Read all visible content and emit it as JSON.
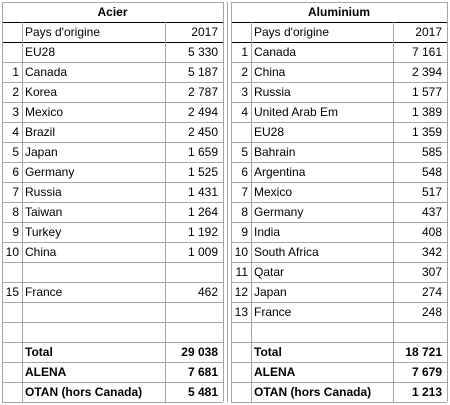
{
  "left": {
    "title": "Acier",
    "col_country": "Pays d'origine",
    "col_year": "2017",
    "rows": [
      {
        "rank": "",
        "country": "EU28",
        "value": "5 330"
      },
      {
        "rank": "1",
        "country": "Canada",
        "value": "5 187"
      },
      {
        "rank": "2",
        "country": "Korea",
        "value": "2 787"
      },
      {
        "rank": "3",
        "country": "Mexico",
        "value": "2 494"
      },
      {
        "rank": "4",
        "country": "Brazil",
        "value": "2 450"
      },
      {
        "rank": "5",
        "country": "Japan",
        "value": "1 659"
      },
      {
        "rank": "6",
        "country": "Germany",
        "value": "1 525"
      },
      {
        "rank": "7",
        "country": "Russia",
        "value": "1 431"
      },
      {
        "rank": "8",
        "country": "Taiwan",
        "value": "1 264"
      },
      {
        "rank": "9",
        "country": "Turkey",
        "value": "1 192"
      },
      {
        "rank": "10",
        "country": "China",
        "value": "1 009"
      },
      {
        "rank": "",
        "country": "",
        "value": ""
      },
      {
        "rank": "15",
        "country": "France",
        "value": "462"
      },
      {
        "rank": "",
        "country": "",
        "value": ""
      }
    ],
    "summary": [
      {
        "label": "Total",
        "value": "29 038"
      },
      {
        "label": "ALENA",
        "value": "7 681"
      },
      {
        "label": "OTAN (hors Canada)",
        "value": "5 481"
      }
    ]
  },
  "right": {
    "title": "Aluminium",
    "col_country": "Pays d'origine",
    "col_year": "2017",
    "rows": [
      {
        "rank": "1",
        "country": "Canada",
        "value": "7 161"
      },
      {
        "rank": "2",
        "country": "China",
        "value": "2 394"
      },
      {
        "rank": "3",
        "country": "Russia",
        "value": "1 577"
      },
      {
        "rank": "4",
        "country": "United Arab Em",
        "value": "1 389"
      },
      {
        "rank": "",
        "country": "EU28",
        "value": "1 359"
      },
      {
        "rank": "5",
        "country": "Bahrain",
        "value": "585"
      },
      {
        "rank": "6",
        "country": "Argentina",
        "value": "548"
      },
      {
        "rank": "7",
        "country": "Mexico",
        "value": "517"
      },
      {
        "rank": "8",
        "country": "Germany",
        "value": "437"
      },
      {
        "rank": "9",
        "country": "India",
        "value": "408"
      },
      {
        "rank": "10",
        "country": "South Africa",
        "value": "342"
      },
      {
        "rank": "11",
        "country": "Qatar",
        "value": "307"
      },
      {
        "rank": "12",
        "country": "Japan",
        "value": "274"
      },
      {
        "rank": "13",
        "country": "France",
        "value": "248"
      }
    ],
    "summary": [
      {
        "label": "Total",
        "value": "18 721"
      },
      {
        "label": "ALENA",
        "value": "7 679"
      },
      {
        "label": "OTAN (hors Canada)",
        "value": "1 213"
      }
    ]
  }
}
